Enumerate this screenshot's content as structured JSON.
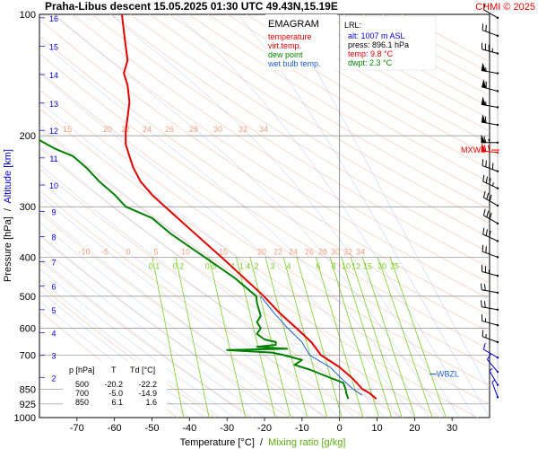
{
  "header": {
    "title": "Praha-Libus   descent   15.05.2025 01:30 UTC  49.43N,15.19E",
    "copyright": "CHMI © 2025"
  },
  "legend": {
    "heading": "EMAGRAM",
    "items": [
      {
        "label": "temperature",
        "color": "#e00000"
      },
      {
        "label": "virt.temp.",
        "color": "#e00000"
      },
      {
        "label": "dew point",
        "color": "#008000"
      },
      {
        "label": "wet bulb temp.",
        "color": "#2060d0"
      }
    ]
  },
  "lrl": {
    "heading": "LRL:",
    "lines": [
      {
        "text": "alt: 1007 m ASL",
        "color": "#0000cc"
      },
      {
        "text": "press: 896.1 hPa",
        "color": "#000000"
      },
      {
        "text": "temp: 9.8 °C",
        "color": "#e00000"
      },
      {
        "text": "dwpt: 2.3 °C",
        "color": "#008000"
      }
    ]
  },
  "table": {
    "headers": [
      "p [hPa]",
      "T",
      "Td [°C]"
    ],
    "rows": [
      [
        "500",
        "-20.2",
        "-22.2"
      ],
      [
        "700",
        "-5.0",
        "-14.9"
      ],
      [
        "850",
        "6.1",
        "1.6"
      ]
    ]
  },
  "axes": {
    "ylabel": "Pressure [hPa]",
    "ylabel_sep": "  /  ",
    "ylabel2": "Altitude [km]",
    "xlabel": "Temperature [°C]",
    "xlabel_sep": "  /  ",
    "xlabel2": "Mixing ratio [g/kg]"
  },
  "markers": {
    "mxws": "MXWS",
    "wbzl": "WBZL"
  },
  "colors": {
    "temperature": "#e00000",
    "dewpoint": "#008000",
    "wetbulb": "#2060d0",
    "altitude": "#0000cc",
    "dry_adiabat": "#f2c7b0",
    "saturated_adiabat": "#9aa6f5",
    "mixing_ratio": "#7ccc28",
    "wind": "#000000",
    "wind_highlight": "#e00000",
    "wind_low": "#0000cc"
  },
  "chart_data": {
    "type": "line",
    "subtype": "emagram",
    "y_scale": "log",
    "ylim": [
      1000,
      100
    ],
    "xlim": [
      -80,
      40
    ],
    "x_ticks": [
      -70,
      -60,
      -50,
      -40,
      -30,
      -20,
      -10,
      0,
      10,
      20,
      30
    ],
    "pressure_ticks": [
      100,
      200,
      300,
      400,
      500,
      600,
      700,
      850,
      925,
      1000
    ],
    "altitude_ticks": [
      {
        "label": "16",
        "p": 102
      },
      {
        "label": "15",
        "p": 120
      },
      {
        "label": "14",
        "p": 141
      },
      {
        "label": "13",
        "p": 166
      },
      {
        "label": "12",
        "p": 194
      },
      {
        "label": "11",
        "p": 227
      },
      {
        "label": "10",
        "p": 265
      },
      {
        "label": "9",
        "p": 308
      },
      {
        "label": "8",
        "p": 356
      },
      {
        "label": "7",
        "p": 411
      },
      {
        "label": "6",
        "p": 472
      },
      {
        "label": "5",
        "p": 540
      },
      {
        "label": "4",
        "p": 616
      },
      {
        "label": "3",
        "p": 701
      },
      {
        "label": "2",
        "p": 795
      }
    ],
    "mixing_ratio_labels": [
      "0.1",
      "0.2",
      "0.5",
      "1",
      "1.4",
      "2",
      "3",
      "4",
      "6",
      "8",
      "10",
      "12",
      "15",
      "20",
      "25"
    ],
    "dry_adiabat_labels_upper": [
      "15",
      "20",
      "22",
      "24",
      "26",
      "28",
      "30",
      "32",
      "34"
    ],
    "dry_adiabat_labels_lower": [
      "-10",
      "-5",
      "0",
      "5",
      "10",
      "15",
      "20",
      "22",
      "24",
      "26",
      "28",
      "30",
      "32",
      "34"
    ],
    "series": [
      {
        "name": "temperature",
        "points": [
          [
            899,
            9.8
          ],
          [
            870,
            8.0
          ],
          [
            850,
            6.1
          ],
          [
            800,
            3.5
          ],
          [
            750,
            0.0
          ],
          [
            700,
            -5.0
          ],
          [
            650,
            -7.5
          ],
          [
            600,
            -11.5
          ],
          [
            550,
            -16.0
          ],
          [
            500,
            -20.2
          ],
          [
            450,
            -25.5
          ],
          [
            400,
            -31.5
          ],
          [
            350,
            -38.5
          ],
          [
            300,
            -46.5
          ],
          [
            280,
            -50.0
          ],
          [
            260,
            -53.0
          ],
          [
            240,
            -55.0
          ],
          [
            225,
            -56.0
          ],
          [
            210,
            -57.0
          ],
          [
            195,
            -57.0
          ],
          [
            180,
            -56.5
          ],
          [
            165,
            -56.0
          ],
          [
            150,
            -56.5
          ],
          [
            140,
            -57.5
          ],
          [
            130,
            -56.5
          ],
          [
            120,
            -57.0
          ],
          [
            110,
            -57.5
          ],
          [
            100,
            -58.0
          ]
        ]
      },
      {
        "name": "dew point",
        "points": [
          [
            899,
            2.3
          ],
          [
            870,
            1.8
          ],
          [
            850,
            1.6
          ],
          [
            820,
            1.0
          ],
          [
            800,
            -2.0
          ],
          [
            760,
            -8.0
          ],
          [
            740,
            -12.0
          ],
          [
            720,
            -10.0
          ],
          [
            700,
            -14.9
          ],
          [
            690,
            -18.0
          ],
          [
            685,
            -24.0
          ],
          [
            680,
            -30.0
          ],
          [
            675,
            -14.0
          ],
          [
            668,
            -22.0
          ],
          [
            660,
            -17.0
          ],
          [
            650,
            -17.0
          ],
          [
            640,
            -20.0
          ],
          [
            620,
            -22.0
          ],
          [
            600,
            -21.0
          ],
          [
            580,
            -22.0
          ],
          [
            560,
            -21.0
          ],
          [
            520,
            -22.0
          ],
          [
            500,
            -22.2
          ],
          [
            450,
            -28.0
          ],
          [
            400,
            -36.0
          ],
          [
            350,
            -45.0
          ],
          [
            320,
            -50.0
          ],
          [
            300,
            -57.0
          ],
          [
            280,
            -60.0
          ],
          [
            260,
            -64.0
          ],
          [
            240,
            -67.5
          ],
          [
            225,
            -71.0
          ],
          [
            215,
            -76.0
          ],
          [
            210,
            -78.0
          ],
          [
            205,
            -80.0
          ]
        ]
      },
      {
        "name": "wet bulb temp.",
        "points": [
          [
            880,
            6.0
          ],
          [
            850,
            3.6
          ],
          [
            800,
            0.5
          ],
          [
            750,
            -2.5
          ],
          [
            700,
            -8.0
          ],
          [
            650,
            -10.0
          ],
          [
            600,
            -13.8
          ],
          [
            550,
            -17.5
          ],
          [
            500,
            -21.0
          ]
        ]
      }
    ],
    "wind": [
      {
        "p": 102,
        "dir": 300,
        "spd": 10
      },
      {
        "p": 113,
        "dir": 290,
        "spd": 25
      },
      {
        "p": 125,
        "dir": 285,
        "spd": 35
      },
      {
        "p": 140,
        "dir": 280,
        "spd": 55
      },
      {
        "p": 155,
        "dir": 285,
        "spd": 60
      },
      {
        "p": 170,
        "dir": 280,
        "spd": 55
      },
      {
        "p": 188,
        "dir": 280,
        "spd": 60
      },
      {
        "p": 208,
        "dir": 270,
        "spd": 65
      },
      {
        "p": 220,
        "dir": 275,
        "spd": 70
      },
      {
        "p": 245,
        "dir": 290,
        "spd": 40
      },
      {
        "p": 270,
        "dir": 295,
        "spd": 35
      },
      {
        "p": 298,
        "dir": 300,
        "spd": 30
      },
      {
        "p": 330,
        "dir": 300,
        "spd": 30
      },
      {
        "p": 365,
        "dir": 295,
        "spd": 30
      },
      {
        "p": 400,
        "dir": 290,
        "spd": 25
      },
      {
        "p": 445,
        "dir": 285,
        "spd": 25
      },
      {
        "p": 490,
        "dir": 280,
        "spd": 20
      },
      {
        "p": 540,
        "dir": 280,
        "spd": 20
      },
      {
        "p": 590,
        "dir": 285,
        "spd": 15
      },
      {
        "p": 650,
        "dir": 290,
        "spd": 15
      },
      {
        "p": 710,
        "dir": 300,
        "spd": 10
      },
      {
        "p": 770,
        "dir": 320,
        "spd": 10
      },
      {
        "p": 830,
        "dir": 330,
        "spd": 5
      },
      {
        "p": 890,
        "dir": 340,
        "spd": 5
      }
    ],
    "mxws_p": 217,
    "wbzl_p": 780,
    "lrl_p": 896.1
  }
}
